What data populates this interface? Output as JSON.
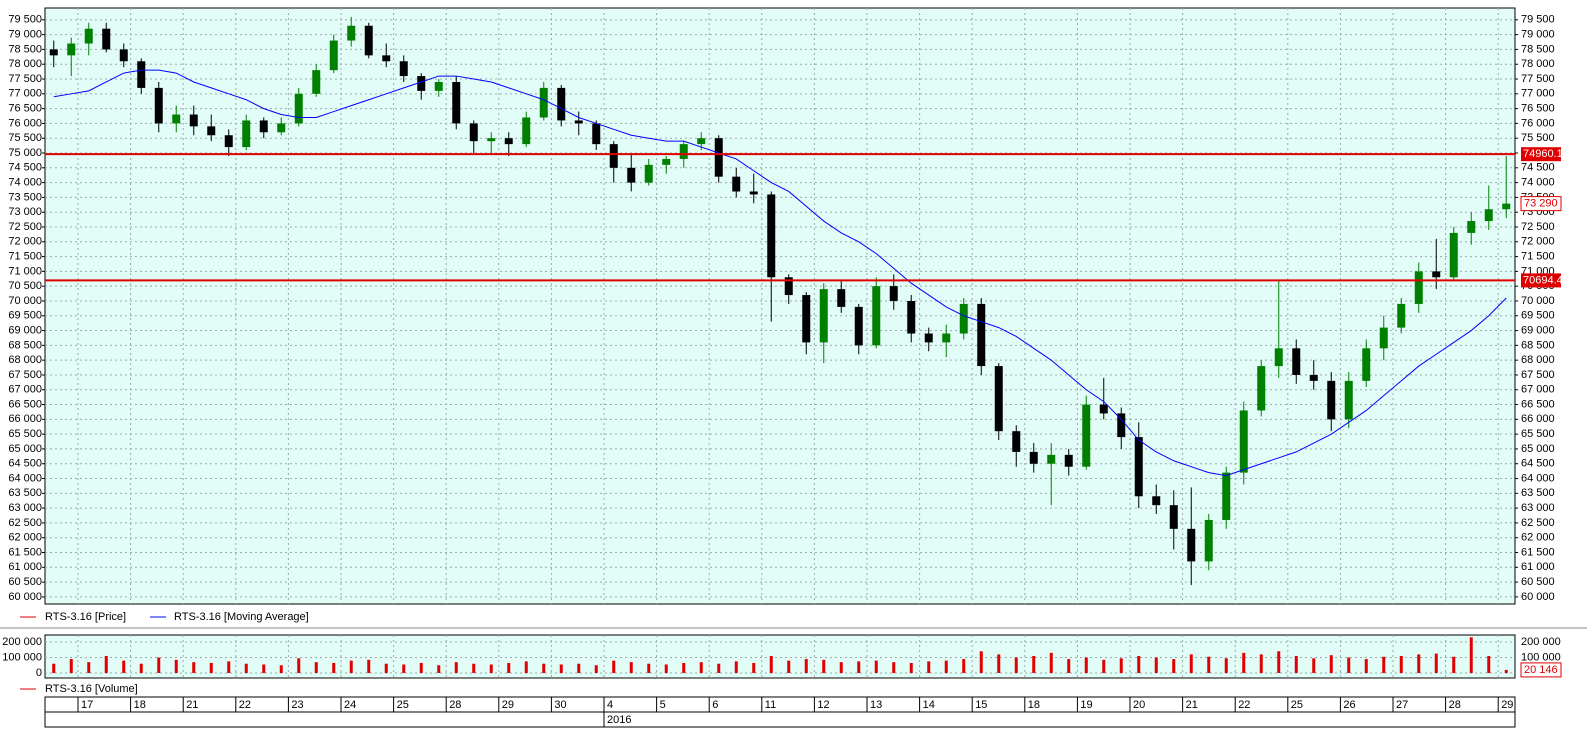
{
  "chart_data": [
    {
      "type": "candlestick",
      "series": [
        {
          "name": "RTS-3.16 [Price]",
          "color": "#e00000",
          "open": [
            78500,
            78300,
            78700,
            79200,
            78500,
            78100,
            77200,
            76000,
            76300,
            75900,
            75600,
            75200,
            76100,
            75700,
            76000,
            77000,
            77800,
            78800,
            79300,
            78300,
            78100,
            77600,
            77100,
            77400,
            76000,
            75400,
            75500,
            75300,
            76200,
            77200,
            76100,
            76000,
            75300,
            74500,
            74000,
            74600,
            74800,
            75300,
            75500,
            74200,
            73700,
            73600,
            70800,
            70200,
            68600,
            70400,
            69800,
            68500,
            70500,
            70000,
            68900,
            68600,
            68900,
            69900,
            67800,
            65600,
            64900,
            64500,
            64800,
            64400,
            66500,
            66200,
            65400,
            63400,
            63100,
            62300,
            61200,
            62600,
            64200,
            66300,
            67800,
            68400,
            67500,
            67300,
            66000,
            67300,
            68400,
            69100,
            69900,
            71000,
            70800,
            72300,
            72700,
            73100
          ],
          "high": [
            78800,
            78900,
            79400,
            79400,
            78700,
            78200,
            77400,
            76600,
            76600,
            76300,
            75800,
            76300,
            76200,
            76200,
            77200,
            78000,
            79000,
            79600,
            79400,
            78700,
            78300,
            77700,
            77500,
            77600,
            76100,
            75700,
            75700,
            76400,
            77400,
            77300,
            76400,
            76100,
            75400,
            75000,
            74800,
            74900,
            75400,
            75700,
            75600,
            74500,
            74300,
            73700,
            70900,
            70300,
            70600,
            70700,
            69900,
            70800,
            70900,
            70200,
            69100,
            69200,
            70100,
            70100,
            67900,
            65800,
            65200,
            65200,
            65000,
            66800,
            67400,
            66400,
            65900,
            63800,
            63600,
            63700,
            62800,
            64400,
            66600,
            68000,
            70700,
            68700,
            68000,
            67600,
            67600,
            68700,
            69500,
            70100,
            71300,
            72100,
            72500,
            73000,
            73900,
            74900
          ],
          "low": [
            77900,
            77600,
            78300,
            78400,
            77900,
            77000,
            75700,
            75700,
            75600,
            75400,
            74900,
            75100,
            75500,
            75600,
            75900,
            76900,
            77700,
            78600,
            78200,
            77900,
            77400,
            76800,
            76900,
            75800,
            75000,
            75000,
            74900,
            75200,
            76100,
            75900,
            75600,
            75100,
            74000,
            73700,
            73900,
            74300,
            74500,
            75100,
            74000,
            73500,
            73300,
            69300,
            69900,
            68200,
            67900,
            69600,
            68200,
            68400,
            69700,
            68600,
            68300,
            68100,
            68700,
            67500,
            65300,
            64400,
            64200,
            63100,
            64100,
            64300,
            66000,
            65000,
            63000,
            62800,
            61600,
            60400,
            60900,
            62300,
            63800,
            66100,
            67400,
            67200,
            67000,
            65600,
            65700,
            67100,
            68000,
            68900,
            69600,
            70400,
            70700,
            71900,
            72400,
            72800
          ],
          "close": [
            78300,
            78700,
            79200,
            78500,
            78100,
            77200,
            76000,
            76300,
            75900,
            75600,
            75200,
            76100,
            75700,
            76000,
            77000,
            77800,
            78800,
            79300,
            78300,
            78100,
            77600,
            77100,
            77400,
            76000,
            75400,
            75500,
            75300,
            76200,
            77200,
            76100,
            76000,
            75300,
            74500,
            74000,
            74600,
            74800,
            75300,
            75500,
            74200,
            73700,
            73600,
            70800,
            70200,
            68600,
            70400,
            69800,
            68500,
            70500,
            70000,
            68900,
            68600,
            68900,
            69900,
            67800,
            65600,
            64900,
            64500,
            64800,
            64400,
            66500,
            66200,
            65400,
            63400,
            63100,
            62300,
            61200,
            62600,
            64200,
            66300,
            67800,
            68400,
            67500,
            67300,
            66000,
            67300,
            68400,
            69100,
            69900,
            71000,
            70800,
            72300,
            72700,
            73100,
            73290
          ]
        },
        {
          "name": "RTS-3.16 [Moving Average]",
          "color": "#0000ff",
          "type": "line",
          "values": [
            76900,
            77000,
            77100,
            77400,
            77700,
            77800,
            77800,
            77700,
            77400,
            77200,
            77000,
            76800,
            76500,
            76300,
            76200,
            76200,
            76400,
            76600,
            76800,
            77000,
            77200,
            77400,
            77600,
            77600,
            77500,
            77400,
            77200,
            77000,
            76800,
            76500,
            76200,
            76000,
            75800,
            75600,
            75500,
            75400,
            75400,
            75200,
            75000,
            74800,
            74400,
            74000,
            73700,
            73200,
            72700,
            72300,
            72000,
            71600,
            71100,
            70600,
            70200,
            69800,
            69500,
            69300,
            69100,
            68800,
            68400,
            68000,
            67500,
            67000,
            66600,
            66000,
            65300,
            64900,
            64600,
            64400,
            64200,
            64100,
            64300,
            64500,
            64700,
            64900,
            65200,
            65500,
            65900,
            66300,
            66800,
            67300,
            67800,
            68200,
            68600,
            69000,
            69500,
            70100
          ]
        }
      ],
      "up_color": "#008000",
      "down_color": "#000000",
      "grid": true,
      "ylim": [
        59760,
        79900
      ],
      "yticks": [
        {
          "value": 60000,
          "label": "60 000"
        },
        {
          "value": 60500,
          "label": "60 500"
        },
        {
          "value": 61000,
          "label": "61 000"
        },
        {
          "value": 61500,
          "label": "61 500"
        },
        {
          "value": 62000,
          "label": "62 000"
        },
        {
          "value": 62500,
          "label": "62 500"
        },
        {
          "value": 63000,
          "label": "63 000"
        },
        {
          "value": 63500,
          "label": "63 500"
        },
        {
          "value": 64000,
          "label": "64 000"
        },
        {
          "value": 64500,
          "label": "64 500"
        },
        {
          "value": 65000,
          "label": "65 000"
        },
        {
          "value": 65500,
          "label": "65 500"
        },
        {
          "value": 66000,
          "label": "66 000"
        },
        {
          "value": 66500,
          "label": "66 500"
        },
        {
          "value": 67000,
          "label": "67 000"
        },
        {
          "value": 67500,
          "label": "67 500"
        },
        {
          "value": 68000,
          "label": "68 000"
        },
        {
          "value": 68500,
          "label": "68 500"
        },
        {
          "value": 69000,
          "label": "69 000"
        },
        {
          "value": 69500,
          "label": "69 500"
        },
        {
          "value": 70000,
          "label": "70 000"
        },
        {
          "value": 70500,
          "label": "70 500"
        },
        {
          "value": 71000,
          "label": "71 000"
        },
        {
          "value": 71500,
          "label": "71 500"
        },
        {
          "value": 72000,
          "label": "72 000"
        },
        {
          "value": 72500,
          "label": "72 500"
        },
        {
          "value": 73000,
          "label": "73 000"
        },
        {
          "value": 73500,
          "label": "73 500"
        },
        {
          "value": 74000,
          "label": "74 000"
        },
        {
          "value": 74500,
          "label": "74 500"
        },
        {
          "value": 75000,
          "label": "75 000"
        },
        {
          "value": 75500,
          "label": "75 500"
        },
        {
          "value": 76000,
          "label": "76 000"
        },
        {
          "value": 76500,
          "label": "76 500"
        },
        {
          "value": 77000,
          "label": "77 000"
        },
        {
          "value": 77500,
          "label": "77 500"
        },
        {
          "value": 78000,
          "label": "78 000"
        },
        {
          "value": 78500,
          "label": "78 500"
        },
        {
          "value": 79000,
          "label": "79 000"
        },
        {
          "value": 79500,
          "label": "79 500"
        }
      ],
      "hlines": [
        {
          "value": 74960.1,
          "label": "74960.1"
        },
        {
          "value": 70694.4,
          "label": "70694.4"
        }
      ],
      "hline_color": "#e00000",
      "last_price": {
        "value": 73290,
        "label": "73 290"
      }
    },
    {
      "type": "bar",
      "series": [
        {
          "name": "RTS-3.16 [Volume]",
          "color": "#e00000",
          "values": [
            60000,
            90000,
            70000,
            110000,
            80000,
            60000,
            100000,
            85000,
            70000,
            65000,
            75000,
            60000,
            55000,
            50000,
            95000,
            70000,
            65000,
            80000,
            85000,
            60000,
            55000,
            65000,
            50000,
            70000,
            60000,
            55000,
            65000,
            75000,
            60000,
            55000,
            60000,
            50000,
            80000,
            70000,
            60000,
            55000,
            65000,
            70000,
            60000,
            75000,
            65000,
            110000,
            80000,
            90000,
            85000,
            70000,
            75000,
            80000,
            70000,
            65000,
            75000,
            80000,
            90000,
            140000,
            120000,
            100000,
            110000,
            130000,
            90000,
            100000,
            85000,
            95000,
            110000,
            100000,
            90000,
            120000,
            105000,
            95000,
            130000,
            120000,
            140000,
            110000,
            95000,
            115000,
            100000,
            90000,
            105000,
            110000,
            120000,
            125000,
            105000,
            230000,
            110000,
            20146
          ]
        }
      ],
      "ylim": [
        -32000,
        245000
      ],
      "yticks": [
        0,
        {
          "value": 100000,
          "label": "100 000"
        },
        {
          "value": 200000,
          "label": "200 000"
        }
      ],
      "grid": true,
      "last_value": {
        "value": 20146,
        "label": "20 146"
      }
    }
  ],
  "date_axis": {
    "days": [
      null,
      "17",
      "18",
      "21",
      "22",
      "23",
      "24",
      "25",
      "28",
      "29",
      "30",
      "4",
      "5",
      "6",
      "11",
      "12",
      "13",
      "14",
      "15",
      "18",
      "19",
      "20",
      "21",
      "22",
      "25",
      "26",
      "27",
      "28",
      "29"
    ],
    "years": [
      null,
      "2016"
    ]
  }
}
